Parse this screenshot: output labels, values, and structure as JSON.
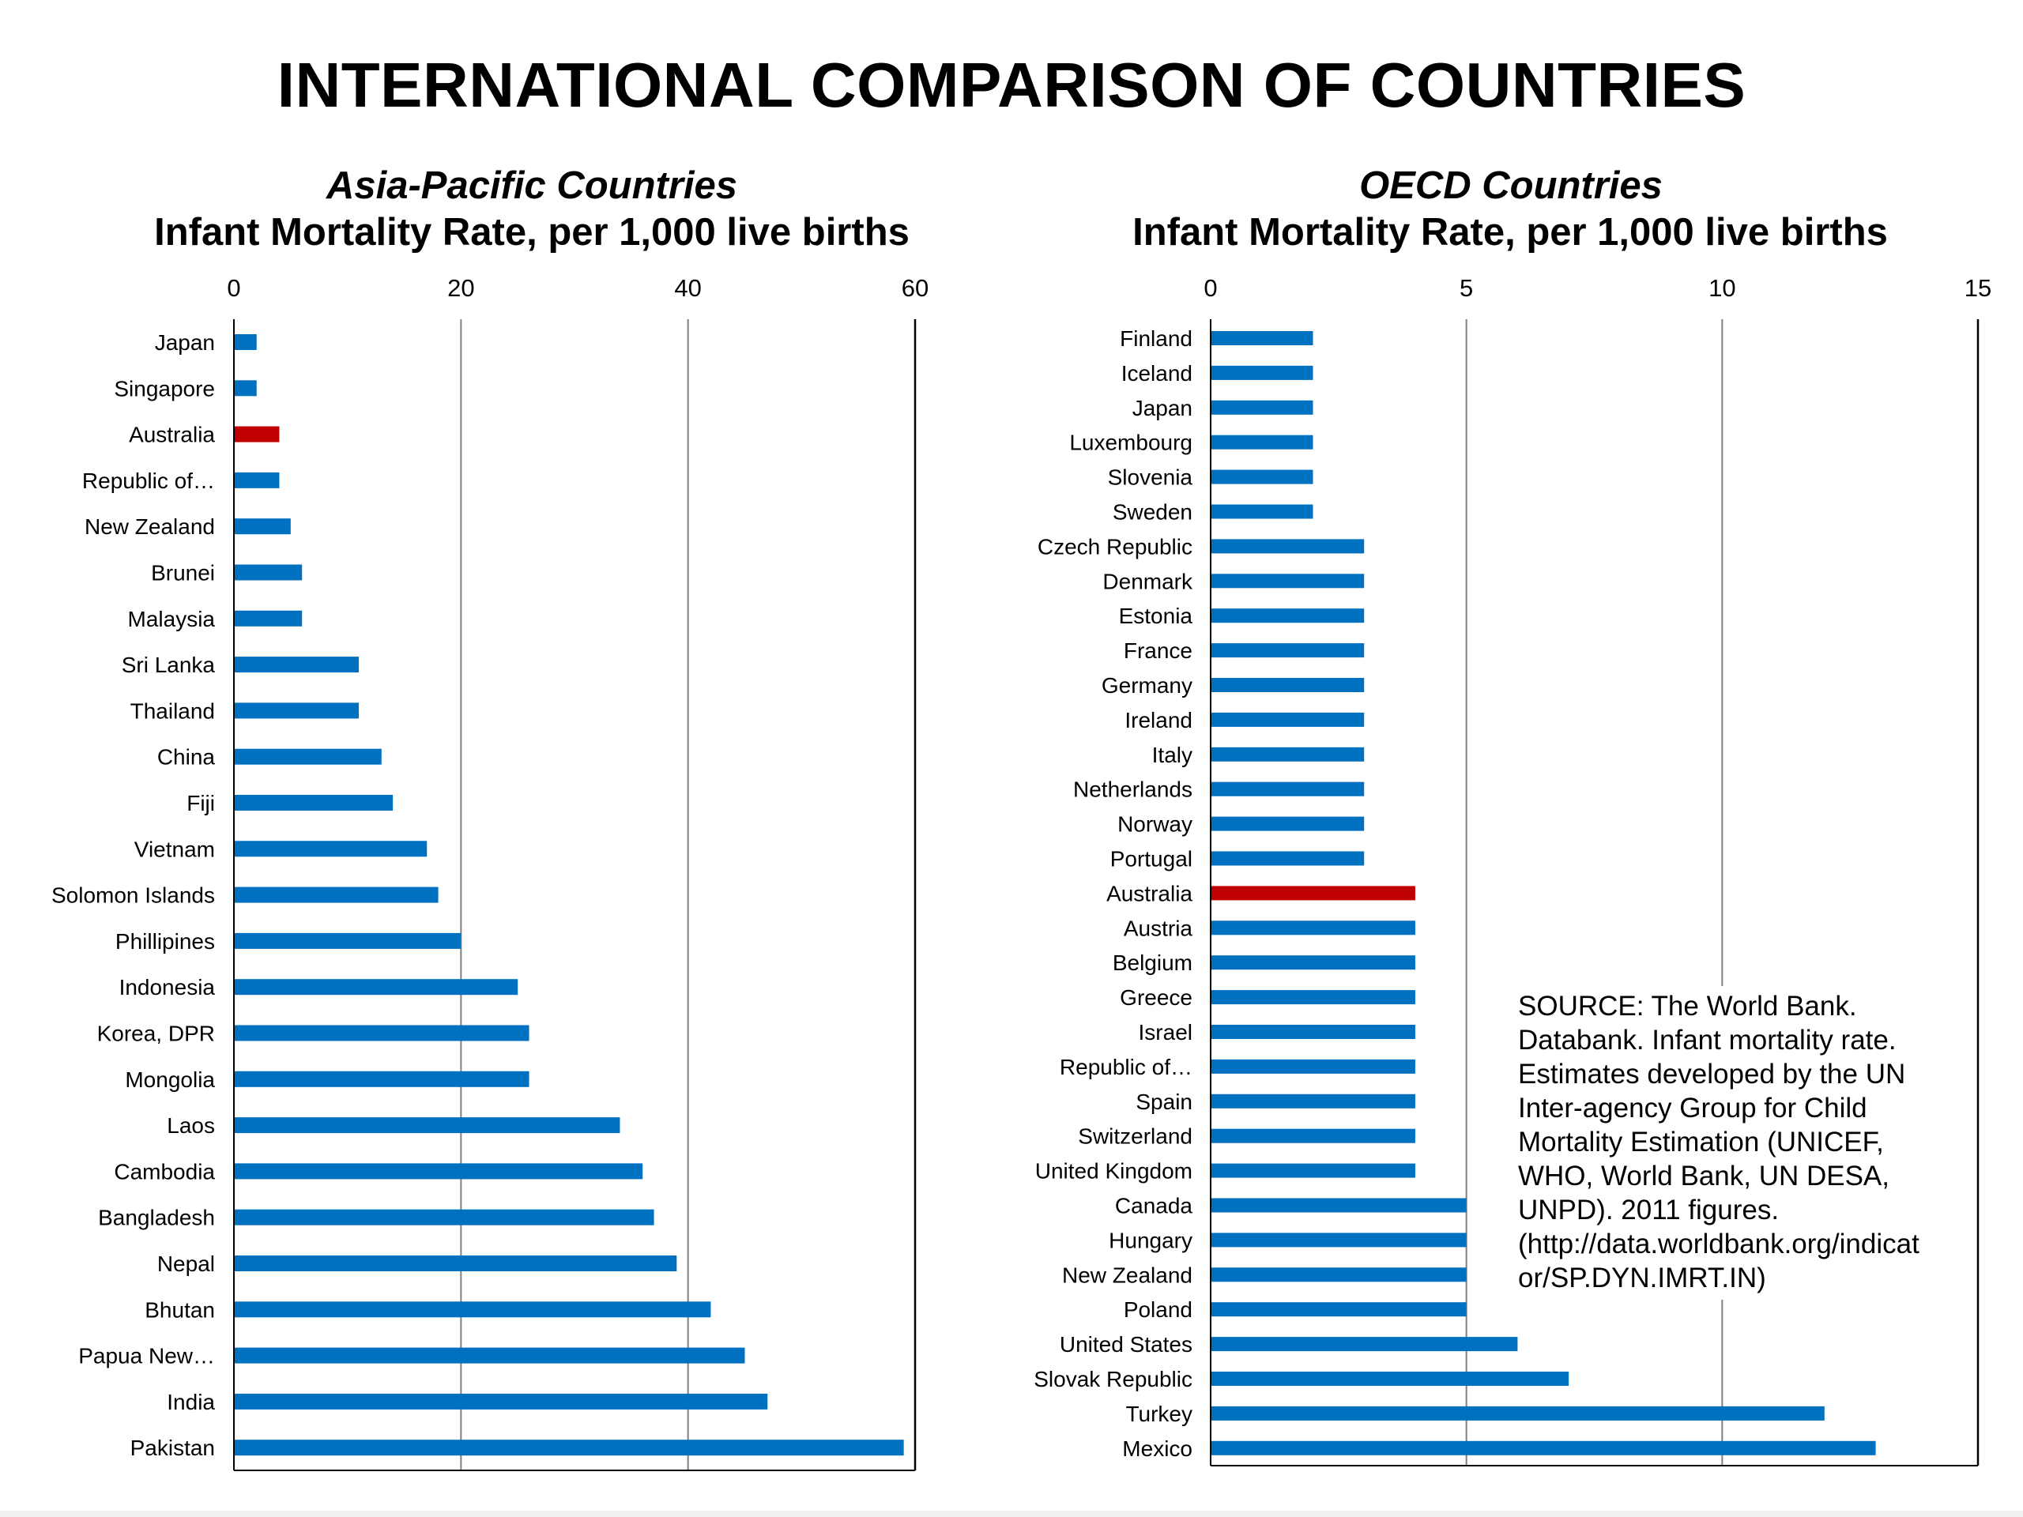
{
  "page": {
    "title": "INTERNATIONAL COMPARISON OF COUNTRIES",
    "source_note": "SOURCE: The World Bank.\nDatabank. Infant mortality rate.\nEstimates developed by the UN\nInter-agency Group for Child\nMortality Estimation (UNICEF,\nWHO, World Bank, UN DESA,\nUNPD). 2011 figures.\n(http://data.worldbank.org/indicat\nor/SP.DYN.IMRT.IN)"
  },
  "colors": {
    "bar": "#0070C0",
    "highlight": "#C00000",
    "grid": "#808080",
    "axis": "#000000"
  },
  "chart_data": [
    {
      "type": "bar",
      "orientation": "horizontal",
      "title": "Asia-Pacific Countries",
      "subtitle": "Infant Mortality Rate, per 1,000 live births",
      "xlim": [
        0,
        60
      ],
      "xticks": [
        "0",
        "20",
        "40",
        "60"
      ],
      "grid": true,
      "highlight": "Australia",
      "categories": [
        "Japan",
        "Singapore",
        "Australia",
        "Republic of…",
        "New Zealand",
        "Brunei",
        "Malaysia",
        "Sri Lanka",
        "Thailand",
        "China",
        "Fiji",
        "Vietnam",
        "Solomon Islands",
        "Phillipines",
        "Indonesia",
        "Korea, DPR",
        "Mongolia",
        "Laos",
        "Cambodia",
        "Bangladesh",
        "Nepal",
        "Bhutan",
        "Papua New…",
        "India",
        "Pakistan"
      ],
      "values": [
        2,
        2,
        4,
        4,
        5,
        6,
        6,
        11,
        11,
        13,
        14,
        17,
        18,
        20,
        25,
        26,
        26,
        34,
        36,
        37,
        39,
        42,
        45,
        47,
        59
      ]
    },
    {
      "type": "bar",
      "orientation": "horizontal",
      "title": "OECD Countries",
      "subtitle": "Infant Mortality Rate, per 1,000 live births",
      "xlim": [
        0,
        15
      ],
      "xticks": [
        "0",
        "5",
        "10",
        "15"
      ],
      "grid": true,
      "highlight": "Australia",
      "categories": [
        "Finland",
        "Iceland",
        "Japan",
        "Luxembourg",
        "Slovenia",
        "Sweden",
        "Czech Republic",
        "Denmark",
        "Estonia",
        "France",
        "Germany",
        "Ireland",
        "Italy",
        "Netherlands",
        "Norway",
        "Portugal",
        "Australia",
        "Austria",
        "Belgium",
        "Greece",
        "Israel",
        "Republic of…",
        "Spain",
        "Switzerland",
        "United Kingdom",
        "Canada",
        "Hungary",
        "New Zealand",
        "Poland",
        "United States",
        "Slovak Republic",
        "Turkey",
        "Mexico"
      ],
      "values": [
        2,
        2,
        2,
        2,
        2,
        2,
        3,
        3,
        3,
        3,
        3,
        3,
        3,
        3,
        3,
        3,
        4,
        4,
        4,
        4,
        4,
        4,
        4,
        4,
        4,
        5,
        5,
        5,
        5,
        6,
        7,
        12,
        13
      ]
    }
  ]
}
